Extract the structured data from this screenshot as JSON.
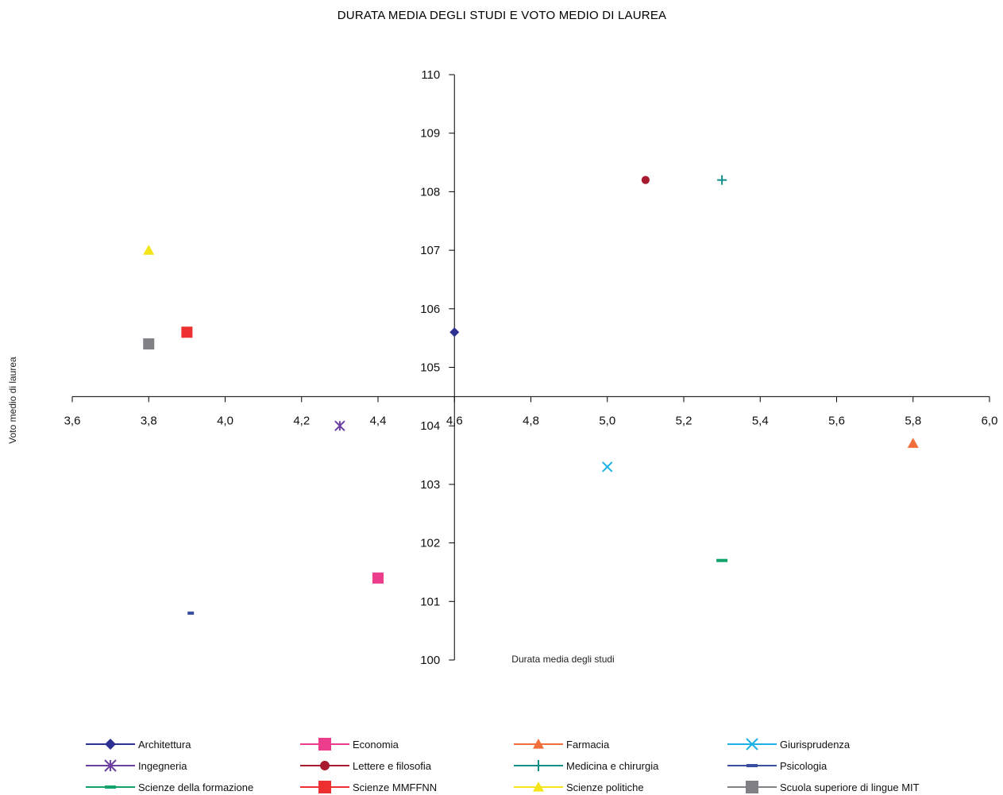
{
  "chart_data": {
    "type": "scatter",
    "title": "DURATA MEDIA DEGLI STUDI E VOTO MEDIO DI LAUREA",
    "xlabel": "Durata media degli studi",
    "ylabel": "Voto medio di laurea",
    "xlim": [
      3.6,
      6.0
    ],
    "ylim": [
      100,
      110
    ],
    "x_ticks": [
      "3,6",
      "3,8",
      "4,0",
      "4,2",
      "4,4",
      "4,6",
      "4,8",
      "5,0",
      "5,2",
      "5,4",
      "5,6",
      "5,8",
      "6,0"
    ],
    "y_ticks": [
      "100",
      "101",
      "102",
      "103",
      "104",
      "105",
      "106",
      "107",
      "108",
      "109",
      "110"
    ],
    "x_axis_crosses_y_at": 104.5,
    "y_axis_crosses_x_at": 4.6,
    "grid": false,
    "legend_position": "bottom",
    "series": [
      {
        "name": "Architettura",
        "x": 4.6,
        "y": 105.6,
        "marker": "diamond",
        "color": "#2e3192"
      },
      {
        "name": "Economia",
        "x": 4.4,
        "y": 101.4,
        "marker": "square",
        "color": "#ec3d8c"
      },
      {
        "name": "Farmacia",
        "x": 5.8,
        "y": 103.7,
        "marker": "triangle",
        "color": "#f26f3a"
      },
      {
        "name": "Giurisprudenza",
        "x": 5.0,
        "y": 103.3,
        "marker": "x",
        "color": "#1fb1e6"
      },
      {
        "name": "Ingegneria",
        "x": 4.3,
        "y": 104.0,
        "marker": "star",
        "color": "#6a3fa0"
      },
      {
        "name": "Lettere e filosofia",
        "x": 5.1,
        "y": 108.2,
        "marker": "circle",
        "color": "#a6192e"
      },
      {
        "name": "Medicina e chirurgia",
        "x": 5.3,
        "y": 108.2,
        "marker": "plus",
        "color": "#0f8f8a"
      },
      {
        "name": "Psicologia",
        "x": 3.91,
        "y": 100.8,
        "marker": "dash",
        "color": "#3a4fa0"
      },
      {
        "name": "Scienze della formazione",
        "x": 5.3,
        "y": 101.7,
        "marker": "dash",
        "color": "#12a36b"
      },
      {
        "name": "Scienze MMFFNN",
        "x": 3.9,
        "y": 105.6,
        "marker": "square",
        "color": "#ee3130"
      },
      {
        "name": "Scienze politiche",
        "x": 3.8,
        "y": 107.0,
        "marker": "triangle",
        "color": "#f3e51a"
      },
      {
        "name": "Scuola superiore di lingue MIT",
        "x": 3.8,
        "y": 105.4,
        "marker": "square",
        "color": "#808085"
      }
    ]
  }
}
